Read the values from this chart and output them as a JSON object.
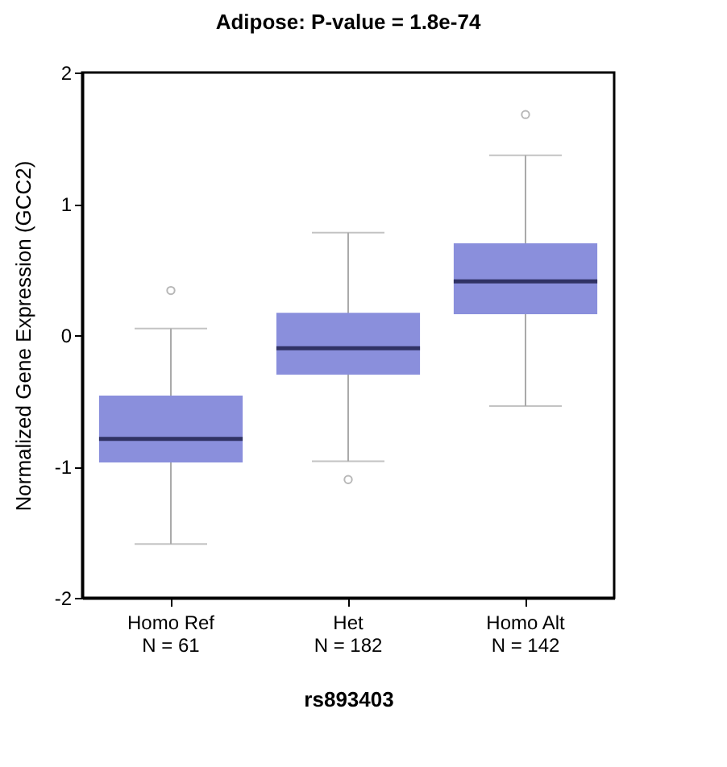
{
  "chart_data": {
    "type": "box",
    "title": "Adipose: P-value = 1.8e-74",
    "xlabel": "rs893403",
    "ylabel": "Normalized Gene Expression (GCC2)",
    "categories": [
      "Homo Ref\nN = 61",
      "Het\nN = 182",
      "Homo Alt\nN = 142"
    ],
    "series": [
      {
        "color": "#8a8fdc",
        "boxes": [
          {
            "low": -1.59,
            "q1": -0.97,
            "median": -0.79,
            "q3": -0.46,
            "high": 0.05,
            "outliers": [
              0.34
            ]
          },
          {
            "low": -0.96,
            "q1": -0.3,
            "median": -0.1,
            "q3": 0.17,
            "high": 0.78,
            "outliers": [
              -1.1
            ]
          },
          {
            "low": -0.54,
            "q1": 0.16,
            "median": 0.41,
            "q3": 0.7,
            "high": 1.37,
            "outliers": [
              1.68
            ]
          }
        ]
      }
    ],
    "ylim": [
      -2,
      2
    ],
    "yticks": [
      -2,
      -1,
      0,
      1,
      2
    ],
    "grid": false
  }
}
